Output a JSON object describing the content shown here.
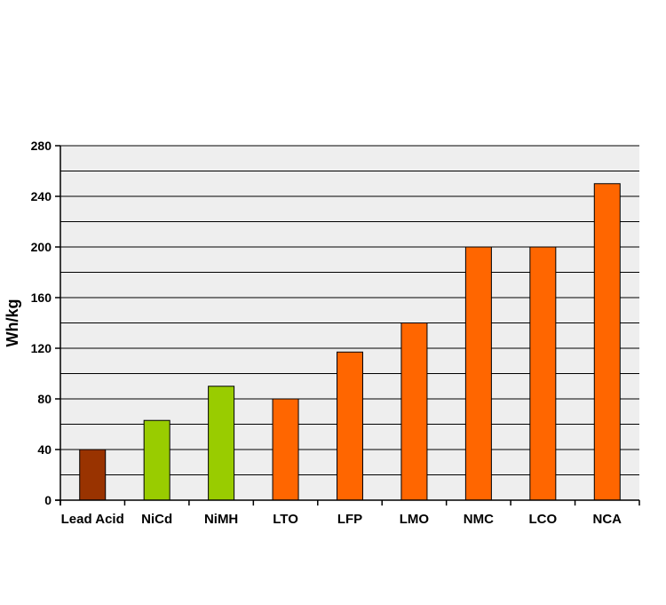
{
  "chart_data": {
    "type": "bar",
    "title": "",
    "xlabel": "",
    "ylabel": "Wh/kg",
    "categories": [
      "Lead Acid",
      "NiCd",
      "NiMH",
      "LTO",
      "LFP",
      "LMO",
      "NMC",
      "LCO",
      "NCA"
    ],
    "values": [
      40,
      63,
      90,
      80,
      117,
      140,
      200,
      200,
      250
    ],
    "bar_colors": [
      "#993300",
      "#99cc00",
      "#99cc00",
      "#ff6600",
      "#ff6600",
      "#ff6600",
      "#ff6600",
      "#ff6600",
      "#ff6600"
    ],
    "ylim": [
      0,
      280
    ],
    "yticks": [
      0,
      40,
      80,
      120,
      160,
      200,
      240,
      280
    ],
    "grid": true,
    "grid_step": 20,
    "legend": "none",
    "plot_background": "#eeeeee",
    "gridline_color": "#000000",
    "bar_outline_color": "#000000"
  }
}
